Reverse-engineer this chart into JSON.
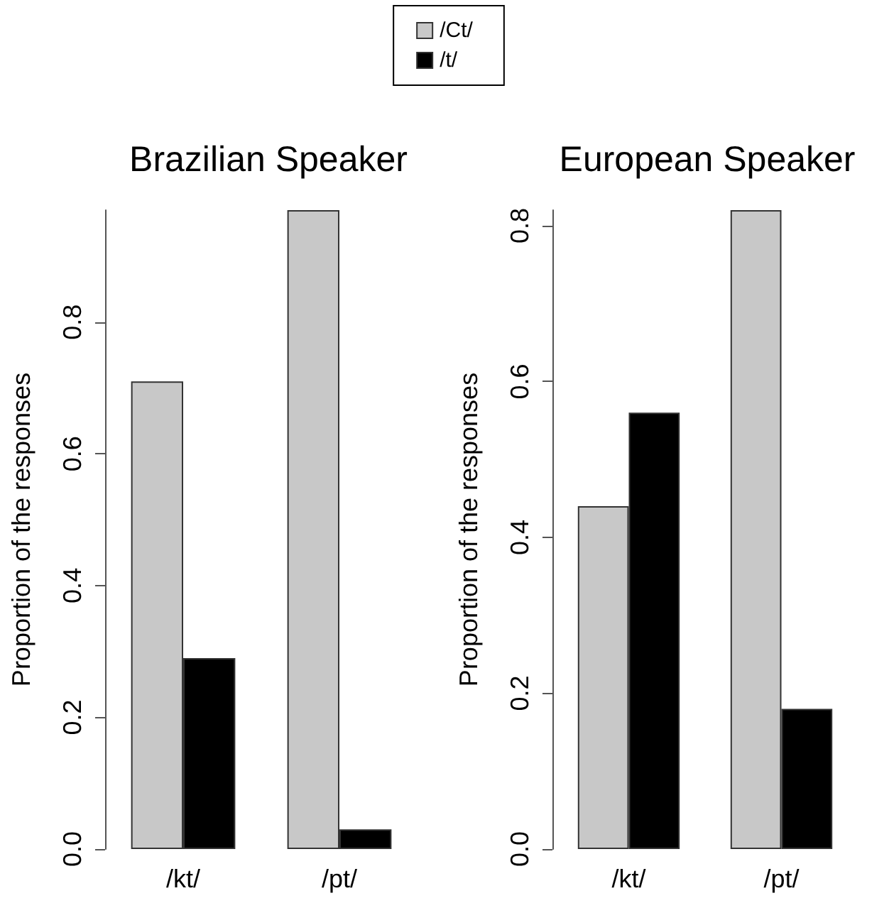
{
  "chart_data": [
    {
      "type": "bar",
      "title": "Brazilian Speaker",
      "ylabel": "Proportion of the responses",
      "categories": [
        "/kt/",
        "/pt/"
      ],
      "series": [
        {
          "name": "/Ct/",
          "color": "#c8c8c8",
          "values": [
            0.71,
            0.97
          ]
        },
        {
          "name": "/t/",
          "color": "#000000",
          "values": [
            0.29,
            0.03
          ]
        }
      ],
      "ylim": [
        0,
        0.97
      ],
      "yticks": [
        {
          "value": 0,
          "label": "0.0"
        },
        0.2,
        0.4,
        0.6,
        0.8
      ],
      "grid": false,
      "legend": "top"
    },
    {
      "type": "bar",
      "title": "European Speaker",
      "ylabel": "Proportion of the responses",
      "categories": [
        "/kt/",
        "/pt/"
      ],
      "series": [
        {
          "color": "#c8c8c8",
          "values": [
            0.44,
            0.82
          ]
        },
        {
          "color": "#000000",
          "values": [
            0.56,
            0.18
          ]
        }
      ],
      "ylim": [
        0,
        0.82
      ],
      "yticks": [
        {
          "value": 0,
          "label": "0.0"
        },
        0.2,
        0.4,
        0.6,
        0.8
      ],
      "grid": false
    }
  ]
}
